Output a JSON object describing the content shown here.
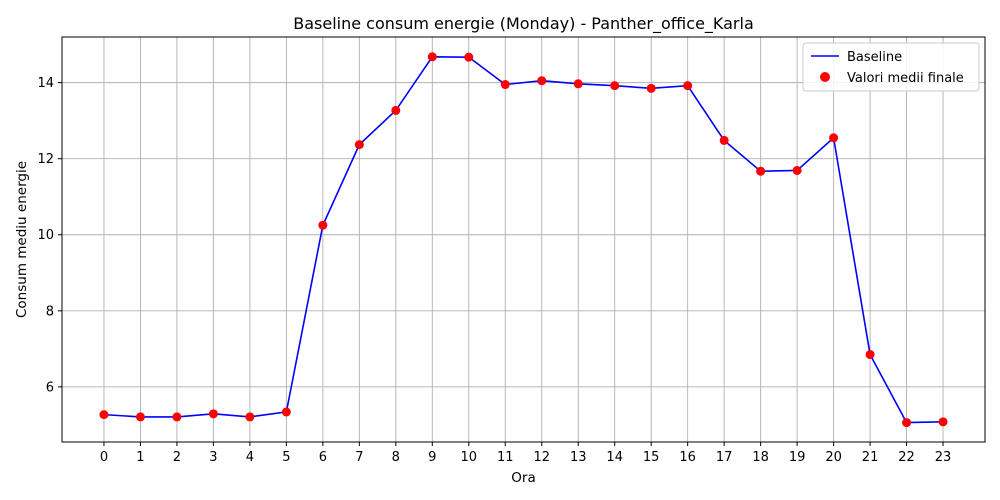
{
  "chart_data": {
    "type": "line",
    "title": "Baseline consum energie (Monday) - Panther_office_Karla",
    "xlabel": "Ora",
    "ylabel": "Consum mediu energie",
    "x": [
      0,
      1,
      2,
      3,
      4,
      5,
      6,
      7,
      8,
      9,
      10,
      11,
      12,
      13,
      14,
      15,
      16,
      17,
      18,
      19,
      20,
      21,
      22,
      23
    ],
    "x_ticks": [
      "0",
      "1",
      "2",
      "3",
      "4",
      "5",
      "6",
      "7",
      "8",
      "9",
      "10",
      "11",
      "12",
      "13",
      "14",
      "15",
      "16",
      "17",
      "18",
      "19",
      "20",
      "21",
      "22",
      "23"
    ],
    "y_ticks": [
      "6",
      "8",
      "10",
      "12",
      "14"
    ],
    "y_tick_values": [
      6,
      8,
      10,
      12,
      14
    ],
    "xlim": [
      -1.15,
      24.15
    ],
    "ylim": [
      4.55,
      15.2
    ],
    "grid": true,
    "legend_position": "top-right",
    "series": [
      {
        "name": "Baseline",
        "kind": "line",
        "color": "#0000ff",
        "values": [
          5.27,
          5.21,
          5.21,
          5.29,
          5.21,
          5.34,
          10.25,
          12.37,
          13.27,
          14.68,
          14.67,
          13.95,
          14.05,
          13.97,
          13.92,
          13.85,
          13.92,
          12.48,
          11.67,
          11.69,
          12.55,
          6.85,
          5.06,
          5.08
        ]
      },
      {
        "name": "Valori medii finale",
        "kind": "scatter",
        "color": "#ff0000",
        "values": [
          5.27,
          5.21,
          5.21,
          5.29,
          5.21,
          5.34,
          10.25,
          12.37,
          13.27,
          14.68,
          14.67,
          13.95,
          14.05,
          13.97,
          13.92,
          13.85,
          13.92,
          12.48,
          11.67,
          11.69,
          12.55,
          6.85,
          5.06,
          5.08
        ]
      }
    ]
  }
}
